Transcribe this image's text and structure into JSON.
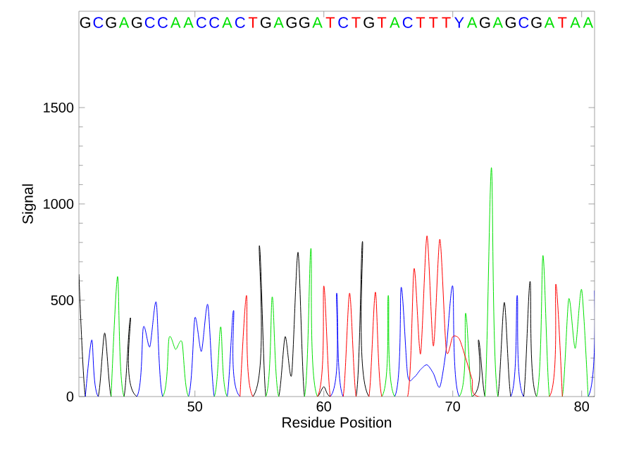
{
  "chart_data": {
    "type": "line",
    "xlabel": "Residue Position",
    "ylabel": "Signal",
    "xlim": [
      41,
      81
    ],
    "ylim": [
      0,
      2000
    ],
    "xticks": [
      50,
      60,
      70,
      80
    ],
    "annotations": [
      "G",
      "C",
      "G",
      "A",
      "G",
      "C",
      "C",
      "A",
      "A",
      "C",
      "C",
      "A",
      "C",
      "T",
      "G",
      "A",
      "G",
      "G",
      "A",
      "T",
      "C",
      "T",
      "G",
      "T",
      "A",
      "C",
      "T",
      "T",
      "T",
      "Y",
      "A",
      "G",
      "A",
      "G",
      "C",
      "G",
      "A",
      "T",
      "A",
      "A"
    ],
    "yticks": [
      0,
      500,
      1000,
      1500
    ],
    "series": [
      {
        "color": "#000000",
        "x": [
          41,
          41.5,
          42.5,
          43,
          43.5,
          44.5,
          45,
          45.5,
          54.5,
          55,
          55.5,
          56.5,
          57,
          57.5,
          58,
          58.5,
          59.5,
          60,
          60.5,
          62.5,
          63,
          63.5,
          71.5,
          72,
          72.5,
          73.5,
          74,
          74.5,
          75.5,
          76,
          76.5,
          81
        ],
        "values": [
          635,
          0,
          0,
          330,
          0,
          0,
          409,
          0,
          0,
          783,
          0,
          0,
          311,
          112,
          749,
          0,
          0,
          51,
          0,
          0,
          805,
          0,
          0,
          294,
          0,
          0,
          489,
          0,
          0,
          598,
          0,
          0
        ]
      },
      {
        "color": "#0000ff",
        "x": [
          41.5,
          42,
          42.5,
          45.5,
          46,
          46.5,
          47,
          47.5,
          49.5,
          50,
          50.5,
          51,
          51.5,
          52.5,
          53,
          53.5,
          60.5,
          61,
          61.5,
          65.5,
          66,
          66.5,
          67,
          67.5,
          68,
          68.5,
          69,
          69.5,
          70,
          70.5,
          74.5,
          75,
          75.5,
          80.5,
          81
        ],
        "values": [
          0,
          294,
          0,
          0,
          360,
          258,
          489,
          0,
          0,
          409,
          234,
          477,
          0,
          0,
          447,
          0,
          0,
          537,
          0,
          0,
          567,
          112,
          100,
          140,
          165,
          120,
          50,
          250,
          573,
          0,
          0,
          525,
          0,
          0,
          550
        ]
      },
      {
        "color": "#00e000",
        "x": [
          43.5,
          44,
          44.5,
          47.5,
          48,
          48.5,
          49,
          49.5,
          51.5,
          52,
          52.5,
          55.5,
          56,
          56.5,
          58.5,
          59,
          59.5,
          64.5,
          65,
          65.5,
          70.5,
          71,
          71.5,
          72.5,
          73,
          73.5,
          76.5,
          77,
          77.5,
          78.5,
          79,
          79.5,
          80,
          80.5
        ],
        "values": [
          0,
          623,
          0,
          0,
          306,
          245,
          282,
          0,
          0,
          362,
          0,
          0,
          518,
          0,
          0,
          769,
          0,
          0,
          525,
          0,
          0,
          433,
          0,
          0,
          1188,
          0,
          0,
          732,
          0,
          0,
          507,
          250,
          555,
          0
        ]
      },
      {
        "color": "#ff0000",
        "x": [
          53.5,
          54,
          54.5,
          59.5,
          60,
          60.5,
          61.5,
          62,
          62.5,
          63.5,
          64,
          64.5,
          66.5,
          67,
          67.5,
          68,
          68.5,
          69,
          69.5,
          70,
          70.5,
          71,
          71.5,
          72,
          77.5,
          78,
          78.5
        ],
        "values": [
          0,
          525,
          0,
          0,
          574,
          0,
          0,
          537,
          0,
          0,
          542,
          0,
          0,
          664,
          221,
          834,
          262,
          817,
          240,
          311,
          300,
          200,
          90,
          0,
          0,
          584,
          0
        ]
      }
    ]
  }
}
